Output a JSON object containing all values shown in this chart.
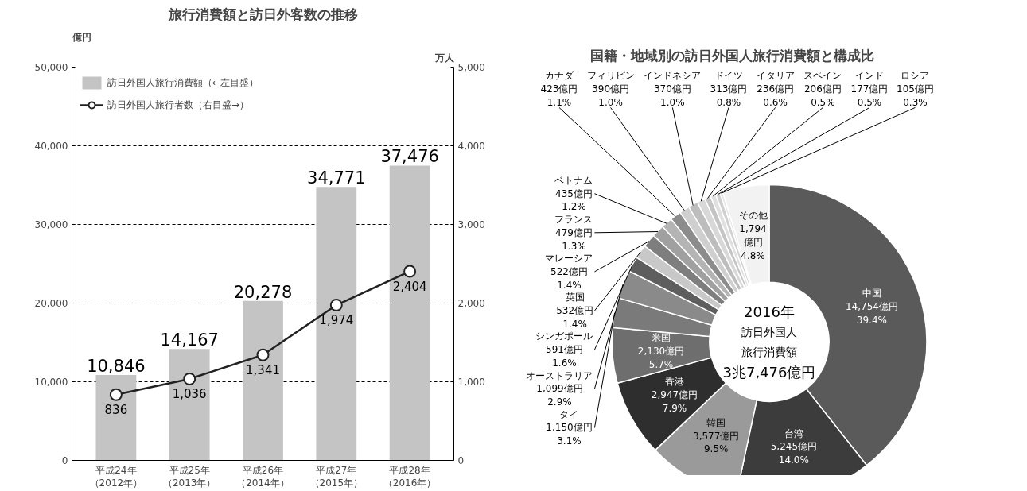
{
  "chart_data": [
    {
      "type": "bar",
      "title": "旅行消費額と訪日外客数の推移",
      "ylabel": "億円",
      "y2label": "万人",
      "categories": [
        "平成24年（2012年）",
        "平成25年（2013年）",
        "平成26年（2014年）",
        "平成27年（2015年）",
        "平成28年（2016年）"
      ],
      "series": [
        {
          "name": "訪日外国人旅行消費額（←左目盛）",
          "color": "#c4c4c4",
          "values": [
            10846,
            14167,
            20278,
            34771,
            37476
          ],
          "value_labels": [
            "10,846",
            "14,167",
            "20,278",
            "34,771",
            "37,476"
          ]
        },
        {
          "name": "訪日外国人旅行者数（右目盛→）",
          "type": "line",
          "axis": "y2",
          "marker": "circle",
          "color": "#222222",
          "values": [
            836,
            1036,
            1341,
            1974,
            2404
          ],
          "value_labels": [
            "836",
            "1,036",
            "1,341",
            "1,974",
            "2,404"
          ]
        }
      ],
      "ylim": [
        0,
        50000
      ],
      "yticks": [
        0,
        {
          "value": 10000,
          "label": "10,000"
        },
        {
          "value": 20000,
          "label": "20,000"
        },
        {
          "value": 30000,
          "label": "30,000"
        },
        {
          "value": 40000,
          "label": "40,000"
        },
        {
          "value": 50000,
          "label": "50,000"
        }
      ],
      "y2lim": [
        0,
        5000
      ],
      "y2ticks": [
        0,
        {
          "value": 1000,
          "label": "1,000"
        },
        {
          "value": 2000,
          "label": "2,000"
        },
        {
          "value": 3000,
          "label": "3,000"
        },
        {
          "value": 4000,
          "label": "4,000"
        },
        {
          "value": 5000,
          "label": "5,000"
        }
      ],
      "grid": "y",
      "legend": "top left"
    },
    {
      "type": "donut",
      "title": "国籍・地域別の訪日外国人旅行消費額と構成比",
      "categories": [
        "中国",
        "台湾",
        "韓国",
        "香港",
        "米国",
        "タイ",
        "オーストラリア",
        "シンガポール",
        "英国",
        "マレーシア",
        "フランス",
        "ベトナム",
        "カナダ",
        "フィリピン",
        "インドネシア",
        "ドイツ",
        "イタリア",
        "スペイン",
        "インド",
        "ロシア",
        "その他"
      ],
      "values": [
        14754,
        5245,
        3577,
        2947,
        2130,
        1150,
        1099,
        591,
        532,
        522,
        479,
        435,
        423,
        390,
        370,
        313,
        236,
        206,
        177,
        105,
        1794
      ],
      "value_labels": [
        "14,754億円\n39.4%",
        "5,245億円\n14.0%",
        "3,577億円\n9.5%",
        "2,947億円\n7.9%",
        "2,130億円\n5.7%",
        "1,150億円\n3.1%",
        "1,099億円\n2.9%",
        "591億円\n1.6%",
        "532億円\n1.4%",
        "522億円\n1.4%",
        "479億円\n1.3%",
        "435億円\n1.2%",
        "423億円\n1.1%",
        "390億円\n1.0%",
        "370億円\n1.0%",
        "313億円\n0.8%",
        "236億円\n0.6%",
        "206億円\n0.5%",
        "177億円\n0.5%",
        "105億円\n0.3%",
        "1,794\n億円\n4.8%"
      ],
      "colors": [
        "#5a5a5a",
        "#3c3c3c",
        "#9a9a9a",
        "#2e2e2e",
        "#6e6e6e",
        "#7a7a7a",
        "#8a8a8a",
        "#5e5e5e",
        "#c8c8c8",
        "#7e7e7e",
        "#a0a0a0",
        "#b4b4b4",
        "#8c8c8c",
        "#cfcfcf",
        "#bdbdbd",
        "#d8d8d8",
        "#c4c4c4",
        "#e0e0e0",
        "#d0d0d0",
        "#e6e6e6",
        "#f2f2f2"
      ],
      "annotations": [
        "2016年",
        "訪日外国人",
        "旅行消費額",
        "3兆7,476億円"
      ]
    }
  ]
}
